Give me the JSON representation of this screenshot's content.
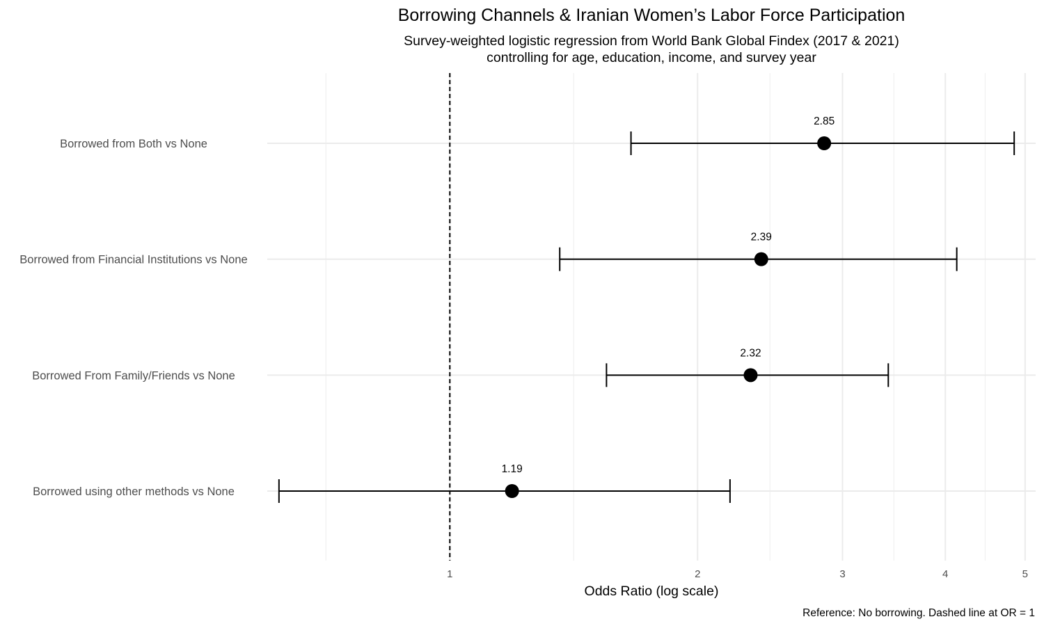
{
  "chart_data": {
    "type": "forest",
    "title": "Borrowing Channels & Iranian Women’s Labor Force Participation",
    "subtitle_lines": [
      "Survey-weighted logistic regression from World Bank Global Findex (2017 & 2021)",
      "controlling for age, education, income, and survey year"
    ],
    "xlabel": "Odds Ratio (log scale)",
    "caption": "Reference: No borrowing. Dashed line at OR = 1",
    "x_scale": "log",
    "xlim": [
      0.6,
      5.15
    ],
    "x_ticks": [
      1,
      2,
      3,
      4,
      5
    ],
    "x_tick_labels": [
      "1",
      "2",
      "3",
      "4",
      "5"
    ],
    "x_minor_gridlines": [
      0.707,
      1.414,
      2.449,
      3.464,
      4.472
    ],
    "grid": true,
    "reference_line": 1,
    "categories": [
      "Borrowed from Both vs None",
      "Borrowed from Financial Institutions vs None",
      "Borrowed From Family/Friends vs None",
      "Borrowed using other methods vs None"
    ],
    "estimates": [
      2.85,
      2.39,
      2.32,
      1.19
    ],
    "estimate_labels": [
      "2.85",
      "2.39",
      "2.32",
      "1.19"
    ],
    "ci_lower": [
      1.66,
      1.36,
      1.55,
      0.62
    ],
    "ci_upper": [
      4.85,
      4.13,
      3.41,
      2.19
    ]
  }
}
